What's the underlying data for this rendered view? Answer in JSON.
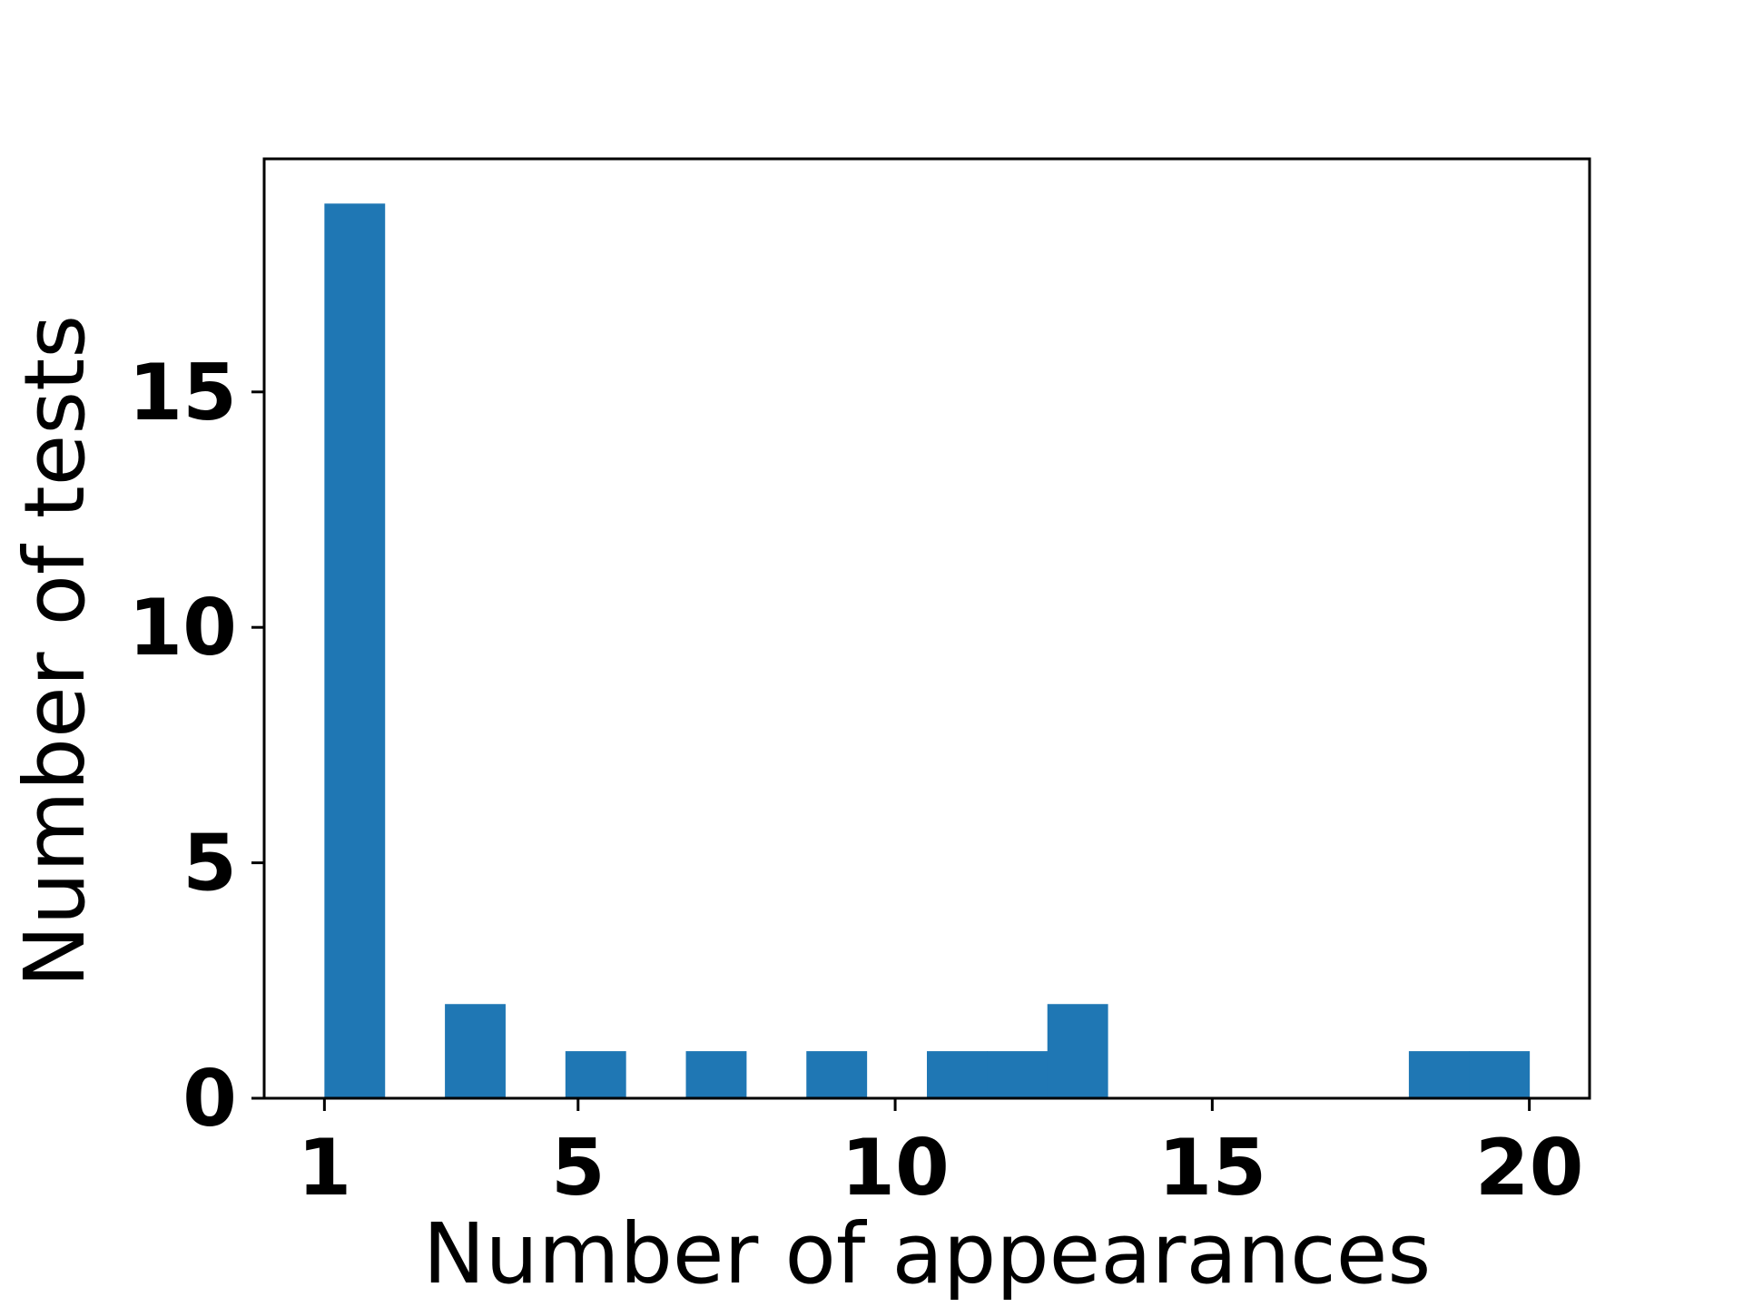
{
  "chart_data": {
    "type": "bar",
    "title": "",
    "xlabel": "Number of appearances",
    "ylabel": "Number of tests",
    "bin_width": 0.95,
    "bars": [
      {
        "x_start": 1.0,
        "x_end": 1.95,
        "value": 19
      },
      {
        "x_start": 1.95,
        "x_end": 2.9,
        "value": 0
      },
      {
        "x_start": 2.9,
        "x_end": 3.85,
        "value": 2
      },
      {
        "x_start": 3.85,
        "x_end": 4.8,
        "value": 0
      },
      {
        "x_start": 4.8,
        "x_end": 5.75,
        "value": 1
      },
      {
        "x_start": 5.75,
        "x_end": 6.7,
        "value": 0
      },
      {
        "x_start": 6.7,
        "x_end": 7.65,
        "value": 1
      },
      {
        "x_start": 7.65,
        "x_end": 8.6,
        "value": 0
      },
      {
        "x_start": 8.6,
        "x_end": 9.55,
        "value": 1
      },
      {
        "x_start": 9.55,
        "x_end": 10.5,
        "value": 0
      },
      {
        "x_start": 10.5,
        "x_end": 11.45,
        "value": 1
      },
      {
        "x_start": 11.45,
        "x_end": 12.4,
        "value": 1
      },
      {
        "x_start": 12.4,
        "x_end": 13.35,
        "value": 2
      },
      {
        "x_start": 13.35,
        "x_end": 14.3,
        "value": 0
      },
      {
        "x_start": 14.3,
        "x_end": 15.25,
        "value": 0
      },
      {
        "x_start": 15.25,
        "x_end": 16.2,
        "value": 0
      },
      {
        "x_start": 16.2,
        "x_end": 17.15,
        "value": 0
      },
      {
        "x_start": 17.15,
        "x_end": 18.1,
        "value": 0
      },
      {
        "x_start": 18.1,
        "x_end": 19.05,
        "value": 1
      },
      {
        "x_start": 19.05,
        "x_end": 20.0,
        "value": 1
      }
    ],
    "x_ticks": [
      1,
      5,
      10,
      15,
      20
    ],
    "x_tick_labels": [
      "1",
      "5",
      "10",
      "15",
      "20"
    ],
    "y_ticks": [
      0,
      5,
      10,
      15
    ],
    "y_tick_labels": [
      "0",
      "5",
      "10",
      "15"
    ],
    "xlim": [
      0.05,
      20.95
    ],
    "ylim": [
      0,
      19.95
    ],
    "grid": false,
    "bar_color": "#1f77b4"
  }
}
